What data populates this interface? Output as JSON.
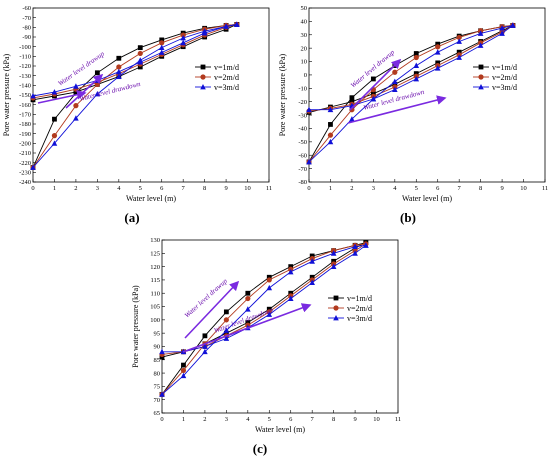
{
  "colors": {
    "v1": "#000000",
    "v2": "#b23a1e",
    "v3": "#1010d8",
    "annotation": "#7a2ae0"
  },
  "chart_data": [
    {
      "type": "line",
      "panel_label": "(a)",
      "xlabel": "Water level (m)",
      "ylabel": "Pore water pressure (kPa)",
      "xlim": [
        0,
        11
      ],
      "ylim": [
        -240,
        -60
      ],
      "xticks": [
        "0",
        "1",
        "2",
        "3",
        "4",
        "5",
        "6",
        "7",
        "8",
        "9",
        "10",
        "11"
      ],
      "yticks": [
        "-240",
        "-230",
        "-220",
        "-210",
        "-200",
        "-190",
        "-180",
        "-170",
        "-160",
        "-150",
        "-140",
        "-130",
        "-120",
        "-110",
        "-100",
        "-90",
        "-80",
        "-70",
        "-60"
      ],
      "legend": {
        "position": "right",
        "entries": [
          "v=1m/d",
          "v=2m/d",
          "v=3m/d"
        ]
      },
      "annotations": [
        {
          "text": "Water level drawup"
        },
        {
          "text": "Water level drawdown"
        }
      ],
      "series": [
        {
          "name": "v=1m/d",
          "color_key": "v1",
          "marker": "square",
          "drawup": {
            "x": [
              0,
              1,
              2,
              3,
              4,
              5,
              6,
              7,
              8,
              9,
              9.5
            ],
            "y": [
              -225,
              -175,
              -148,
              -127,
              -112,
              -101,
              -93,
              -86,
              -81,
              -78,
              -77
            ]
          },
          "drawdown": {
            "x": [
              9.5,
              9,
              8,
              7,
              6,
              5,
              4,
              3,
              2,
              1,
              0
            ],
            "y": [
              -77,
              -82,
              -90,
              -100,
              -110,
              -121,
              -131,
              -139,
              -147,
              -151,
              -155
            ]
          }
        },
        {
          "name": "v=2m/d",
          "color_key": "v2",
          "marker": "circle",
          "drawup": {
            "x": [
              0,
              1,
              2,
              3,
              4,
              5,
              6,
              7,
              8,
              9,
              9.5
            ],
            "y": [
              -225,
              -192,
              -161,
              -139,
              -121,
              -107,
              -96,
              -88,
              -82,
              -78,
              -77
            ]
          },
          "drawdown": {
            "x": [
              9.5,
              9,
              8,
              7,
              6,
              5,
              4,
              3,
              2,
              1,
              0
            ],
            "y": [
              -77,
              -80,
              -88,
              -98,
              -108,
              -118,
              -128,
              -137,
              -144,
              -149,
              -153
            ]
          }
        },
        {
          "name": "v=3m/d",
          "color_key": "v3",
          "marker": "triangle",
          "drawup": {
            "x": [
              0,
              1,
              2,
              3,
              4,
              5,
              6,
              7,
              8,
              9,
              9.5
            ],
            "y": [
              -225,
              -200,
              -174,
              -149,
              -131,
              -114,
              -101,
              -91,
              -84,
              -79,
              -77
            ]
          },
          "drawdown": {
            "x": [
              9.5,
              9,
              8,
              7,
              6,
              5,
              4,
              3,
              2,
              1,
              0
            ],
            "y": [
              -77,
              -79,
              -86,
              -96,
              -106,
              -116,
              -126,
              -135,
              -141,
              -147,
              -151
            ]
          }
        }
      ]
    },
    {
      "type": "line",
      "panel_label": "(b)",
      "xlabel": "Water level (m)",
      "ylabel": "Pore water pressure (kPa)",
      "xlim": [
        0,
        11
      ],
      "ylim": [
        -80,
        50
      ],
      "xticks": [
        "0",
        "1",
        "2",
        "3",
        "4",
        "5",
        "6",
        "7",
        "8",
        "9",
        "10",
        "11"
      ],
      "yticks": [
        "-80",
        "-70",
        "-60",
        "-50",
        "-40",
        "-30",
        "-20",
        "-10",
        "0",
        "10",
        "20",
        "30",
        "40",
        "50"
      ],
      "legend": {
        "position": "right",
        "entries": [
          "v=1m/d",
          "v=2m/d",
          "v=3m/d"
        ]
      },
      "annotations": [
        {
          "text": "Water level drawup"
        },
        {
          "text": "Water level drawdown"
        }
      ],
      "series": [
        {
          "name": "v=1m/d",
          "color_key": "v1",
          "marker": "square",
          "drawup": {
            "x": [
              0,
              1,
              2,
              3,
              4,
              5,
              6,
              7,
              8,
              9,
              9.5
            ],
            "y": [
              -65,
              -37,
              -17,
              -3,
              7,
              16,
              23,
              29,
              33,
              36,
              37
            ]
          },
          "drawdown": {
            "x": [
              9.5,
              9,
              8,
              7,
              6,
              5,
              4,
              3,
              2,
              1,
              0
            ],
            "y": [
              37,
              33,
              25,
              17,
              9,
              1,
              -7,
              -14,
              -20,
              -24,
              -28
            ]
          }
        },
        {
          "name": "v=2m/d",
          "color_key": "v2",
          "marker": "circle",
          "drawup": {
            "x": [
              0,
              1,
              2,
              3,
              4,
              5,
              6,
              7,
              8,
              9,
              9.5
            ],
            "y": [
              -65,
              -45,
              -26,
              -11,
              2,
              13,
              21,
              28,
              33,
              36,
              37
            ]
          },
          "drawdown": {
            "x": [
              9.5,
              9,
              8,
              7,
              6,
              5,
              4,
              3,
              2,
              1,
              0
            ],
            "y": [
              37,
              32,
              24,
              15,
              7,
              -1,
              -9,
              -16,
              -22,
              -25,
              -27
            ]
          }
        },
        {
          "name": "v=3m/d",
          "color_key": "v3",
          "marker": "triangle",
          "drawup": {
            "x": [
              0,
              1,
              2,
              3,
              4,
              5,
              6,
              7,
              8,
              9,
              9.5
            ],
            "y": [
              -65,
              -50,
              -33,
              -18,
              -5,
              7,
              17,
              25,
              31,
              35,
              37
            ]
          },
          "drawdown": {
            "x": [
              9.5,
              9,
              8,
              7,
              6,
              5,
              4,
              3,
              2,
              1,
              0
            ],
            "y": [
              37,
              31,
              22,
              13,
              5,
              -3,
              -11,
              -18,
              -23,
              -26,
              -26
            ]
          }
        }
      ]
    },
    {
      "type": "line",
      "panel_label": "(c)",
      "xlabel": "Water level (m)",
      "ylabel": "Pore water pressure (kPa)",
      "xlim": [
        0,
        11
      ],
      "ylim": [
        65,
        130
      ],
      "xticks": [
        "0",
        "1",
        "2",
        "3",
        "4",
        "5",
        "6",
        "7",
        "8",
        "9",
        "10",
        "11"
      ],
      "yticks": [
        "65",
        "70",
        "75",
        "80",
        "85",
        "90",
        "95",
        "100",
        "105",
        "110",
        "115",
        "120",
        "125",
        "130"
      ],
      "legend": {
        "position": "right",
        "entries": [
          "v=1m/d",
          "v=2m/d",
          "v=3m/d"
        ]
      },
      "annotations": [
        {
          "text": "Water level drawup"
        },
        {
          "text": "Water level drawdown"
        }
      ],
      "series": [
        {
          "name": "v=1m/d",
          "color_key": "v1",
          "marker": "square",
          "drawup": {
            "x": [
              0,
              1,
              2,
              3,
              4,
              5,
              6,
              7,
              8,
              9,
              9.5
            ],
            "y": [
              72,
              83,
              94,
              103,
              110,
              116,
              120,
              124,
              126,
              128,
              129
            ]
          },
          "drawdown": {
            "x": [
              9.5,
              9,
              8,
              7,
              6,
              5,
              4,
              3,
              2,
              1,
              0
            ],
            "y": [
              129,
              127,
              122,
              116,
              110,
              104,
              99,
              95,
              91,
              88,
              86
            ]
          }
        },
        {
          "name": "v=2m/d",
          "color_key": "v2",
          "marker": "circle",
          "drawup": {
            "x": [
              0,
              1,
              2,
              3,
              4,
              5,
              6,
              7,
              8,
              9,
              9.5
            ],
            "y": [
              72,
              81,
              91,
              100,
              108,
              115,
              119,
              123,
              126,
              128,
              128.5
            ]
          },
          "drawdown": {
            "x": [
              9.5,
              9,
              8,
              7,
              6,
              5,
              4,
              3,
              2,
              1,
              0
            ],
            "y": [
              128.5,
              126,
              121,
              115,
              109,
              103,
              98,
              94,
              90,
              88,
              87
            ]
          }
        },
        {
          "name": "v=3m/d",
          "color_key": "v3",
          "marker": "triangle",
          "drawup": {
            "x": [
              0,
              1,
              2,
              3,
              4,
              5,
              6,
              7,
              8,
              9,
              9.5
            ],
            "y": [
              72,
              79,
              88,
              96,
              104,
              112,
              118,
              122,
              125,
              127.5,
              128
            ]
          },
          "drawdown": {
            "x": [
              9.5,
              9,
              8,
              7,
              6,
              5,
              4,
              3,
              2,
              1,
              0
            ],
            "y": [
              128,
              125,
              120,
              114,
              108,
              102,
              97,
              93,
              90,
              88,
              88
            ]
          }
        }
      ]
    }
  ]
}
